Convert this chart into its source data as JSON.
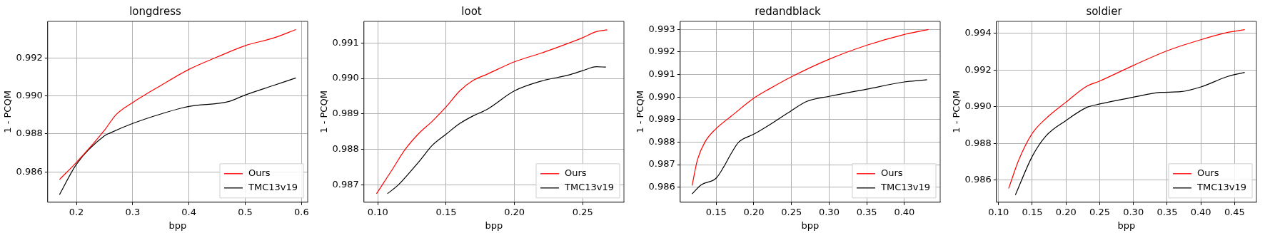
{
  "chart_data": [
    {
      "type": "line",
      "title": "longdress",
      "xlabel": "bpp",
      "ylabel": "1 - PCQM",
      "xlim": [
        0.149,
        0.611
      ],
      "ylim": [
        0.9844,
        0.99393
      ],
      "xticks": [
        0.2,
        0.3,
        0.4,
        0.5,
        0.6
      ],
      "yticks": [
        {
          "value": 0.986,
          "label": "0.986"
        },
        {
          "value": 0.988,
          "label": "0.988"
        },
        {
          "value": 0.99,
          "label": "0.990"
        },
        {
          "value": 0.992,
          "label": "0.992"
        }
      ],
      "grid": true,
      "legend": "bottom right",
      "marker": "none",
      "line_style": "solid",
      "series": [
        {
          "name": "Ours",
          "color": "#ff0000",
          "x": [
            0.17,
            0.2,
            0.25,
            0.27,
            0.3,
            0.35,
            0.4,
            0.45,
            0.5,
            0.55,
            0.59
          ],
          "values": [
            0.9856,
            0.9865,
            0.9882,
            0.989,
            0.98965,
            0.99055,
            0.9914,
            0.99205,
            0.99265,
            0.99305,
            0.9935
          ]
        },
        {
          "name": "TMC13v19",
          "color": "#000000",
          "x": [
            0.17,
            0.2,
            0.25,
            0.26,
            0.3,
            0.35,
            0.4,
            0.47,
            0.5,
            0.55,
            0.59
          ],
          "values": [
            0.9848,
            0.9864,
            0.9879,
            0.98805,
            0.98855,
            0.98905,
            0.98945,
            0.9897,
            0.99005,
            0.99055,
            0.99095
          ]
        }
      ]
    },
    {
      "type": "line",
      "title": "loot",
      "xlabel": "bpp",
      "ylabel": "1 - PCQM",
      "xlim": [
        0.0898,
        0.2802
      ],
      "ylim": [
        0.98651,
        0.99161
      ],
      "xticks": [
        {
          "value": 0.1,
          "label": "0.10"
        },
        0.15,
        {
          "value": 0.2,
          "label": "0.20"
        },
        0.25
      ],
      "yticks": [
        0.987,
        0.988,
        0.989,
        {
          "value": 0.99,
          "label": "0.990"
        },
        0.991
      ],
      "grid": true,
      "legend": "bottom right",
      "marker": "none",
      "line_style": "solid",
      "series": [
        {
          "name": "Ours",
          "color": "#ff0000",
          "x": [
            0.099,
            0.11,
            0.12,
            0.13,
            0.14,
            0.15,
            0.16,
            0.17,
            0.18,
            0.2,
            0.22,
            0.24,
            0.25,
            0.26,
            0.268
          ],
          "values": [
            0.98675,
            0.9874,
            0.988,
            0.98845,
            0.9888,
            0.9892,
            0.98965,
            0.98995,
            0.99012,
            0.99047,
            0.99072,
            0.991,
            0.99115,
            0.99132,
            0.99137
          ]
        },
        {
          "name": "TMC13v19",
          "color": "#000000",
          "x": [
            0.107,
            0.115,
            0.13,
            0.14,
            0.15,
            0.16,
            0.17,
            0.18,
            0.2,
            0.22,
            0.24,
            0.25,
            0.26,
            0.267
          ],
          "values": [
            0.98675,
            0.987,
            0.98765,
            0.98812,
            0.98843,
            0.98873,
            0.98895,
            0.98913,
            0.98965,
            0.98993,
            0.9901,
            0.99022,
            0.99033,
            0.99032
          ]
        }
      ]
    },
    {
      "type": "line",
      "title": "redandblack",
      "xlabel": "bpp",
      "ylabel": "1 - PCQM",
      "xlim": [
        0.1022,
        0.4475
      ],
      "ylim": [
        0.98533,
        0.99336
      ],
      "xticks": [
        0.15,
        {
          "value": 0.2,
          "label": "0.20"
        },
        0.25,
        {
          "value": 0.3,
          "label": "0.30"
        },
        0.35,
        {
          "value": 0.4,
          "label": "0.40"
        }
      ],
      "yticks": [
        0.986,
        0.987,
        0.988,
        0.989,
        {
          "value": 0.99,
          "label": "0.990"
        },
        0.991,
        0.992,
        0.993
      ],
      "grid": true,
      "legend": "bottom right",
      "marker": "none",
      "line_style": "solid",
      "series": [
        {
          "name": "Ours",
          "color": "#ff0000",
          "x": [
            0.118,
            0.125,
            0.135,
            0.15,
            0.17,
            0.2,
            0.22,
            0.25,
            0.3,
            0.35,
            0.4,
            0.432
          ],
          "values": [
            0.98607,
            0.9872,
            0.988,
            0.9886,
            0.98915,
            0.98995,
            0.99035,
            0.9909,
            0.99168,
            0.9923,
            0.99278,
            0.993
          ]
        },
        {
          "name": "TMC13v19",
          "color": "#000000",
          "x": [
            0.118,
            0.13,
            0.15,
            0.16,
            0.17,
            0.18,
            0.2,
            0.22,
            0.25,
            0.27,
            0.3,
            0.35,
            0.4,
            0.43
          ],
          "values": [
            0.9857,
            0.9861,
            0.9864,
            0.9869,
            0.9875,
            0.988,
            0.98835,
            0.98875,
            0.9894,
            0.9898,
            0.99003,
            0.99035,
            0.99067,
            0.99077
          ]
        }
      ]
    },
    {
      "type": "line",
      "title": "soldier",
      "xlabel": "bpp",
      "ylabel": "1 - PCQM",
      "xlim": [
        0.0969,
        0.4824
      ],
      "ylim": [
        0.9848,
        0.99465
      ],
      "xticks": [
        {
          "value": 0.1,
          "label": "0.10"
        },
        0.15,
        {
          "value": 0.2,
          "label": "0.20"
        },
        0.25,
        {
          "value": 0.3,
          "label": "0.30"
        },
        0.35,
        {
          "value": 0.4,
          "label": "0.40"
        },
        0.45
      ],
      "yticks": [
        0.986,
        0.988,
        {
          "value": 0.99,
          "label": "0.990"
        },
        0.992,
        0.994
      ],
      "grid": true,
      "legend": "bottom right",
      "marker": "none",
      "line_style": "solid",
      "series": [
        {
          "name": "Ours",
          "color": "#ff0000",
          "x": [
            0.115,
            0.13,
            0.15,
            0.17,
            0.2,
            0.23,
            0.25,
            0.3,
            0.35,
            0.4,
            0.44,
            0.465
          ],
          "values": [
            0.98555,
            0.9871,
            0.98855,
            0.98935,
            0.99025,
            0.9911,
            0.9914,
            0.99225,
            0.99305,
            0.99365,
            0.99405,
            0.9942
          ]
        },
        {
          "name": "TMC13v19",
          "color": "#000000",
          "x": [
            0.125,
            0.15,
            0.17,
            0.2,
            0.23,
            0.25,
            0.3,
            0.34,
            0.37,
            0.4,
            0.44,
            0.465
          ],
          "values": [
            0.9852,
            0.9873,
            0.9884,
            0.98925,
            0.98995,
            0.99015,
            0.99052,
            0.99078,
            0.99082,
            0.99108,
            0.99165,
            0.99187
          ]
        }
      ]
    }
  ]
}
